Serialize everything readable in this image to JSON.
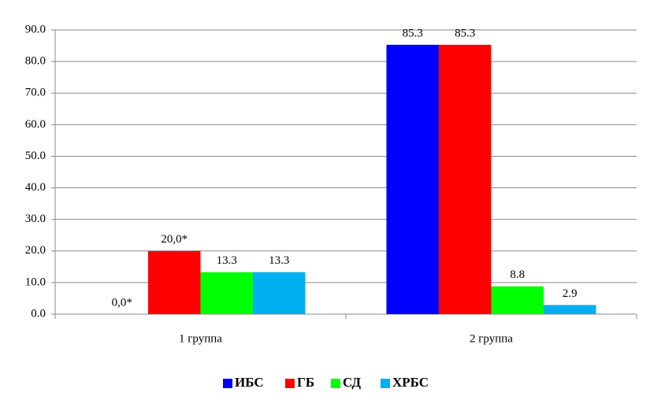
{
  "chart_data": {
    "type": "bar",
    "categories": [
      "1 группа",
      "2 группа"
    ],
    "series": [
      {
        "name": "ИБС",
        "color": "#0000ff",
        "values": [
          0,
          85.3
        ],
        "value_labels": [
          "0,0*",
          "85.3"
        ]
      },
      {
        "name": "ГБ",
        "color": "#ff0000",
        "values": [
          20,
          85.3
        ],
        "value_labels": [
          "20,0*",
          "85.3"
        ]
      },
      {
        "name": "СД",
        "color": "#00ff00",
        "values": [
          13.3,
          8.8
        ]
      },
      {
        "name": "ХРБС",
        "color": "#00b0f0",
        "values": [
          13.3,
          2.9
        ]
      }
    ],
    "ylim": [
      0,
      90
    ],
    "yticks": [
      {
        "value": 0,
        "label": "0.0"
      },
      {
        "value": 10,
        "label": "10.0"
      },
      {
        "value": 20,
        "label": "20.0"
      },
      {
        "value": 30,
        "label": "30.0"
      },
      {
        "value": 40,
        "label": "40.0"
      },
      {
        "value": 50,
        "label": "50.0"
      },
      {
        "value": 60,
        "label": "60.0"
      },
      {
        "value": 70,
        "label": "70.0"
      },
      {
        "value": 80,
        "label": "80.0"
      },
      {
        "value": 90,
        "label": "90.0"
      }
    ],
    "grid": true,
    "legend": "bottom"
  }
}
